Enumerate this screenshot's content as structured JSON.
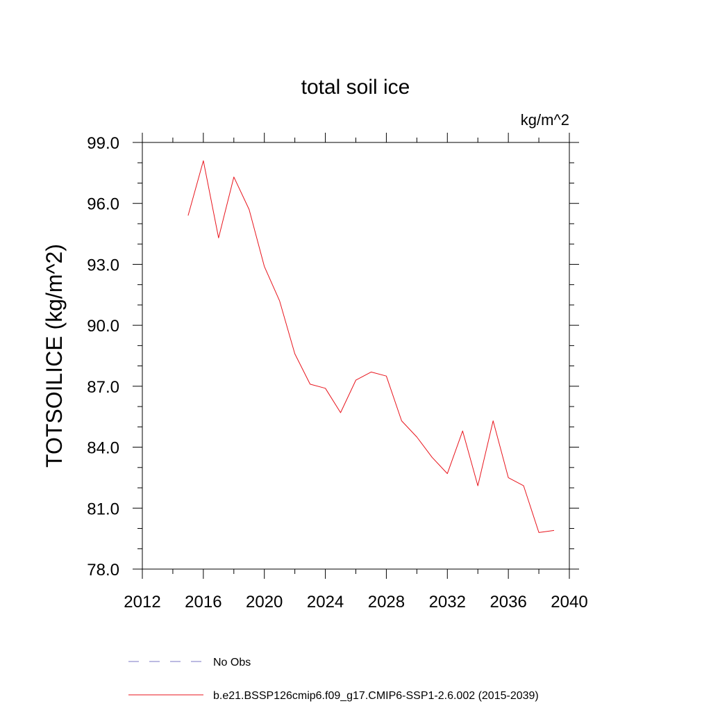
{
  "chart_data": {
    "type": "line",
    "title": "total soil ice",
    "units_label": "kg/m^2",
    "ylabel": "TOTSOILICE  (kg/m^2)",
    "xlabel": "",
    "xlim": [
      2012,
      2040
    ],
    "ylim": [
      78.0,
      99.0
    ],
    "x_ticks": [
      2012,
      2016,
      2020,
      2024,
      2028,
      2032,
      2036,
      2040
    ],
    "x_tick_labels": [
      "2012",
      "2016",
      "2020",
      "2024",
      "2028",
      "2032",
      "2036",
      "2040"
    ],
    "y_ticks": [
      78,
      81,
      84,
      87,
      90,
      93,
      96,
      99
    ],
    "y_tick_labels": [
      "78.0",
      "81.0",
      "84.0",
      "87.0",
      "90.0",
      "93.0",
      "96.0",
      "99.0"
    ],
    "grid": false,
    "legend_position": "bottom-left",
    "series": [
      {
        "name": "b.e21.BSSP126cmip6.f09_g17.CMIP6-SSP1-2.6.002 (2015-2039)",
        "color": "#e8141c",
        "style": "solid",
        "x": [
          2015,
          2016,
          2017,
          2018,
          2019,
          2020,
          2021,
          2022,
          2023,
          2024,
          2025,
          2026,
          2027,
          2028,
          2029,
          2030,
          2031,
          2032,
          2033,
          2034,
          2035,
          2036,
          2037,
          2038,
          2039
        ],
        "values": [
          95.4,
          98.1,
          94.3,
          97.3,
          95.7,
          92.9,
          91.2,
          88.6,
          87.1,
          86.9,
          85.7,
          87.3,
          87.7,
          87.5,
          85.3,
          84.5,
          83.5,
          82.7,
          84.8,
          82.1,
          85.3,
          82.5,
          82.1,
          79.8,
          79.9
        ]
      }
    ],
    "legend": [
      {
        "label": "No Obs",
        "color": "#7a75c4",
        "style": "dashed"
      },
      {
        "label": "b.e21.BSSP126cmip6.f09_g17.CMIP6-SSP1-2.6.002 (2015-2039)",
        "color": "#e8141c",
        "style": "solid"
      }
    ]
  }
}
